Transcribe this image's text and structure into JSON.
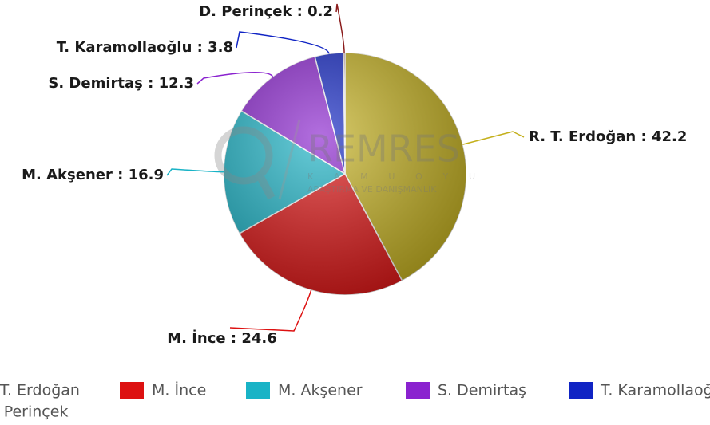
{
  "chart_data": {
    "type": "pie",
    "categories": [
      "R. T. Erdoğan",
      "M. İnce",
      "M. Akşener",
      "S. Demirtaş",
      "T. Karamollaoğlu",
      "D. Perinçek"
    ],
    "values": [
      42.2,
      24.6,
      16.9,
      12.3,
      3.8,
      0.2
    ],
    "data_labels": [
      "R. T. Erdoğan : 42.2",
      "M. İnce : 24.6",
      "M. Akşener : 16.9",
      "S. Demirtaş : 12.3",
      "T. Karamollaoğlu : 3.8",
      "D. Perinçek : 0.2"
    ],
    "colors": [
      "#c4b01c",
      "#dd1111",
      "#19b3c6",
      "#8a22cf",
      "#1024c4",
      "#8b1c1c"
    ],
    "watermark": {
      "name": "REMRES",
      "line1": "K A M U O Y U",
      "line2": "ARAŞTIRMA VE DANIŞMANLIK"
    }
  }
}
